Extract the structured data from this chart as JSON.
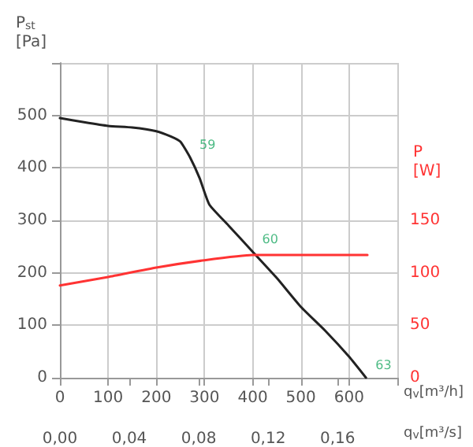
{
  "chart_data": {
    "type": "line",
    "xlabel": "q$_{v}$[m³/h]",
    "ylabel": "P$_{st}$\n[Pa]",
    "y2label": "P\n[W]",
    "x2label": "q$_{v}$[m³/s]",
    "xlim": [
      0,
      700
    ],
    "xticks": [
      0,
      100,
      200,
      300,
      400,
      500,
      600,
      {
        "value": 700,
        "label": null
      }
    ],
    "x2lim": [
      0,
      0.19444
    ],
    "x2ticks": [
      {
        "value": 0,
        "label": "0,00"
      },
      {
        "value": 0.04,
        "label": "0,04"
      },
      {
        "value": 0.08,
        "label": "0,08"
      },
      {
        "value": 0.12,
        "label": "0,12"
      },
      {
        "value": 0.16,
        "label": "0,16"
      }
    ],
    "ylim": [
      0,
      600
    ],
    "yticks": [
      0,
      100,
      200,
      300,
      400,
      500,
      {
        "value": 600,
        "label": null
      }
    ],
    "y2lim": [
      0,
      300
    ],
    "y2ticks": [
      0,
      50,
      100,
      150
    ],
    "series": [
      {
        "color": "#222222",
        "x": [
          0,
          50,
          100,
          150,
          200,
          230,
          250,
          270,
          290,
          310,
          350,
          400,
          450,
          500,
          550,
          600,
          635
        ],
        "values": [
          495,
          487,
          480,
          477,
          470,
          460,
          450,
          420,
          380,
          330,
          290,
          240,
          190,
          135,
          90,
          40,
          0
        ]
      },
      {
        "color": "#ff3333",
        "axis": "y2",
        "x": [
          0,
          100,
          200,
          300,
          400,
          500,
          638
        ],
        "values": [
          88,
          96,
          105,
          112,
          117,
          117,
          117
        ]
      }
    ],
    "annotations": [
      {
        "text": "59",
        "x": 270,
        "y": 420
      },
      {
        "text": "60",
        "x": 400,
        "y": 240
      },
      {
        "text": "63",
        "x": 635,
        "y": 0
      }
    ],
    "grid": true,
    "marker": "none",
    "line_style": "solid"
  }
}
